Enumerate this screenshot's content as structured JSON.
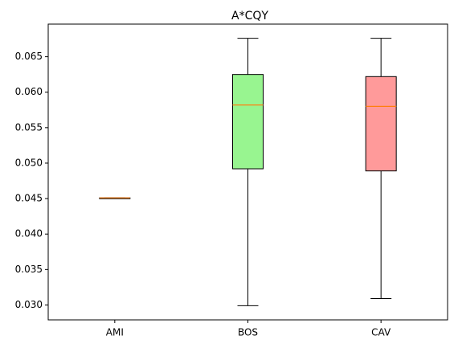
{
  "chart_data": {
    "type": "box",
    "title": "A*CQY",
    "xlabel": "",
    "ylabel": "",
    "categories": [
      "AMI",
      "BOS",
      "CAV"
    ],
    "boxes": [
      {
        "name": "AMI",
        "whislo": 0.0451,
        "q1": 0.0451,
        "med": 0.0451,
        "q3": 0.0451,
        "whishi": 0.0451,
        "color": "#ffffff"
      },
      {
        "name": "BOS",
        "whislo": 0.0299,
        "q1": 0.0492,
        "med": 0.0582,
        "q3": 0.0625,
        "whishi": 0.0676,
        "color": "#98f590"
      },
      {
        "name": "CAV",
        "whislo": 0.0309,
        "q1": 0.0489,
        "med": 0.058,
        "q3": 0.0622,
        "whishi": 0.0676,
        "color": "#ff9a9a"
      }
    ],
    "ylim": [
      0.0279,
      0.0696
    ],
    "yticks": [
      0.03,
      0.035,
      0.04,
      0.045,
      0.05,
      0.055,
      0.06,
      0.065
    ],
    "ytick_labels": [
      "0.030",
      "0.035",
      "0.040",
      "0.045",
      "0.050",
      "0.055",
      "0.060",
      "0.065"
    ],
    "grid": false,
    "median_color": "#ff7f0e"
  }
}
